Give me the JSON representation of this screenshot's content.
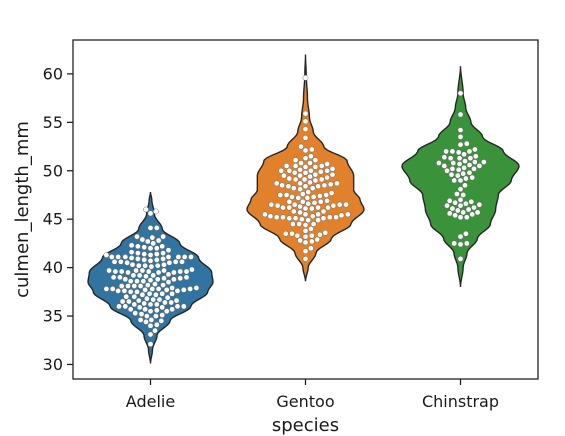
{
  "chart_data": {
    "type": "violin",
    "overlay": "swarm",
    "xlabel": "species",
    "ylabel": "culmen_length_mm",
    "ylim": [
      28.5,
      63.5
    ],
    "yticks": [
      30,
      35,
      40,
      45,
      50,
      55,
      60
    ],
    "ytick_labels": [
      "30",
      "35",
      "40",
      "45",
      "50",
      "55",
      "60"
    ],
    "grid": false,
    "legend": "none",
    "categories": [
      "Adelie",
      "Gentoo",
      "Chinstrap"
    ],
    "series": [
      {
        "category": "Adelie",
        "color": "#3274a1",
        "range": [
          30.1,
          47.8
        ],
        "median": 38.8,
        "density": [
          [
            30.1,
            0.0
          ],
          [
            31.5,
            0.03
          ],
          [
            33,
            0.1
          ],
          [
            34.5,
            0.3
          ],
          [
            36,
            0.62
          ],
          [
            37.5,
            0.88
          ],
          [
            38.5,
            0.96
          ],
          [
            39.5,
            0.94
          ],
          [
            41,
            0.74
          ],
          [
            42.5,
            0.45
          ],
          [
            44,
            0.18
          ],
          [
            45.5,
            0.06
          ],
          [
            47,
            0.02
          ],
          [
            47.8,
            0.0
          ]
        ],
        "values": [
          39.1,
          39.5,
          40.3,
          36.7,
          39.3,
          38.9,
          39.2,
          34.1,
          42.0,
          37.8,
          37.8,
          41.1,
          38.6,
          34.6,
          36.6,
          38.7,
          42.5,
          34.4,
          46.0,
          37.8,
          37.7,
          35.9,
          38.2,
          38.8,
          35.3,
          40.6,
          40.5,
          37.9,
          40.5,
          39.5,
          37.2,
          39.5,
          40.9,
          36.4,
          39.2,
          38.8,
          42.2,
          37.6,
          39.8,
          36.5,
          40.8,
          36.0,
          44.1,
          37.0,
          39.6,
          41.1,
          37.5,
          36.0,
          42.3,
          39.6,
          40.1,
          35.0,
          42.0,
          34.5,
          41.4,
          39.0,
          40.6,
          36.5,
          37.6,
          35.7,
          41.3,
          37.6,
          41.1,
          36.4,
          41.6,
          35.5,
          41.1,
          35.9,
          41.8,
          33.5,
          39.7,
          39.6,
          45.8,
          35.5,
          42.8,
          40.9,
          37.2,
          36.2,
          42.1,
          34.6,
          42.9,
          36.7,
          35.1,
          37.3,
          41.3,
          36.3,
          36.9,
          38.3,
          38.9,
          35.7,
          41.1,
          34.0,
          39.6,
          36.2,
          40.8,
          38.1,
          40.3,
          33.1,
          43.2,
          35.0,
          41.0,
          37.7,
          37.8,
          37.9,
          39.7,
          38.6,
          38.2,
          38.1,
          43.2,
          38.1,
          45.6,
          39.7,
          42.2,
          39.6,
          42.7,
          38.6,
          37.3,
          35.7,
          41.1,
          36.2,
          37.7,
          40.2,
          41.4,
          35.2,
          40.6,
          38.8,
          41.5,
          39.0,
          44.1,
          38.5,
          43.1,
          36.8,
          37.5,
          38.1,
          41.1,
          35.6,
          40.2,
          37.0,
          39.7,
          40.2,
          40.6,
          32.1,
          40.7,
          37.3,
          39.0,
          39.2,
          36.6,
          36.0,
          37.8,
          36.0,
          41.5
        ]
      },
      {
        "category": "Gentoo",
        "color": "#e1812c",
        "range": [
          38.6,
          62.0
        ],
        "median": 47.3,
        "density": [
          [
            38.6,
            0.0
          ],
          [
            40,
            0.04
          ],
          [
            41.5,
            0.16
          ],
          [
            43,
            0.4
          ],
          [
            44.5,
            0.7
          ],
          [
            46,
            0.9
          ],
          [
            47,
            0.84
          ],
          [
            48,
            0.74
          ],
          [
            49.5,
            0.74
          ],
          [
            51,
            0.64
          ],
          [
            52.5,
            0.28
          ],
          [
            54,
            0.12
          ],
          [
            55.5,
            0.06
          ],
          [
            57.5,
            0.03
          ],
          [
            60,
            0.01
          ],
          [
            62,
            0.0
          ]
        ],
        "values": [
          46.1,
          50.0,
          48.7,
          50.0,
          47.6,
          46.5,
          45.4,
          46.7,
          43.3,
          46.8,
          40.9,
          49.0,
          45.5,
          48.4,
          45.8,
          49.3,
          42.0,
          49.2,
          46.2,
          48.7,
          50.2,
          45.1,
          46.5,
          46.3,
          42.9,
          46.1,
          44.5,
          47.8,
          48.2,
          50.0,
          47.3,
          42.8,
          45.1,
          59.6,
          49.1,
          48.4,
          42.6,
          44.4,
          44.0,
          48.7,
          42.7,
          49.6,
          45.3,
          49.6,
          50.5,
          43.6,
          45.5,
          50.5,
          44.9,
          45.2,
          46.6,
          48.5,
          45.1,
          50.1,
          46.5,
          45.0,
          43.8,
          45.5,
          43.2,
          50.4,
          45.3,
          46.2,
          45.7,
          54.3,
          45.8,
          49.8,
          46.2,
          49.5,
          43.5,
          50.7,
          47.7,
          46.4,
          48.2,
          46.5,
          46.4,
          48.6,
          47.5,
          51.1,
          45.2,
          45.2,
          49.1,
          52.5,
          47.4,
          50.0,
          44.9,
          50.8,
          43.4,
          51.3,
          47.5,
          52.1,
          47.5,
          52.2,
          45.5,
          49.5,
          44.5,
          50.8,
          49.4,
          46.9,
          48.4,
          51.1,
          48.5,
          55.9,
          47.2,
          49.1,
          47.3,
          46.8,
          41.7,
          53.4,
          43.3,
          48.1,
          50.5,
          49.8,
          43.5,
          51.5,
          46.2,
          55.1,
          44.5,
          48.8,
          47.2,
          46.8,
          50.4,
          45.2,
          49.9
        ]
      },
      {
        "category": "Chinstrap",
        "color": "#3a923a",
        "range": [
          38.0,
          60.8
        ],
        "median": 49.5,
        "density": [
          [
            38,
            0.0
          ],
          [
            40,
            0.04
          ],
          [
            41.5,
            0.1
          ],
          [
            43,
            0.26
          ],
          [
            44.5,
            0.46
          ],
          [
            46,
            0.54
          ],
          [
            47.5,
            0.58
          ],
          [
            49,
            0.78
          ],
          [
            50.5,
            0.9
          ],
          [
            52,
            0.66
          ],
          [
            53.5,
            0.34
          ],
          [
            55,
            0.16
          ],
          [
            56.5,
            0.08
          ],
          [
            58,
            0.04
          ],
          [
            60.8,
            0.0
          ]
        ],
        "values": [
          46.5,
          50.0,
          51.3,
          45.4,
          52.7,
          45.2,
          46.1,
          51.3,
          46.0,
          51.3,
          46.6,
          51.7,
          47.0,
          52.0,
          45.9,
          50.5,
          50.3,
          58.0,
          46.4,
          49.2,
          42.4,
          48.5,
          43.2,
          50.6,
          46.7,
          52.0,
          50.5,
          49.5,
          46.4,
          52.8,
          40.9,
          54.2,
          42.5,
          51.0,
          49.7,
          47.5,
          47.6,
          52.0,
          46.9,
          53.5,
          49.0,
          46.2,
          50.9,
          45.5,
          50.9,
          50.8,
          50.1,
          49.0,
          51.5,
          49.8,
          48.1,
          51.4,
          45.7,
          50.7,
          42.5,
          52.2,
          45.2,
          49.3,
          50.2,
          45.6,
          51.9,
          46.8,
          45.7,
          55.8,
          43.5,
          49.6,
          50.8,
          50.2
        ]
      }
    ]
  }
}
